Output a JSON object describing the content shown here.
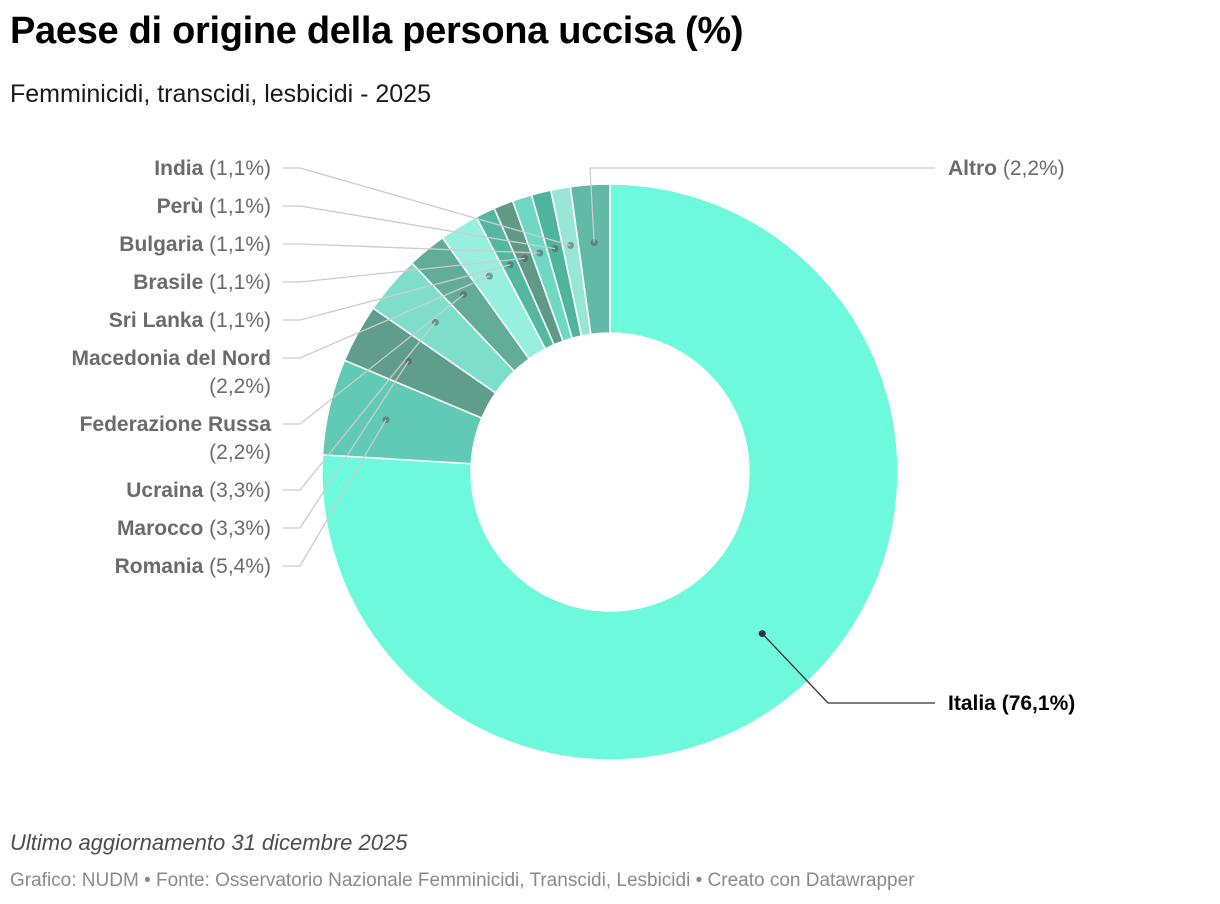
{
  "header": {
    "title": "Paese di origine della persona uccisa (%)",
    "subtitle": "Femminicidi, transcidi, lesbicidi - 2025"
  },
  "notes": "Ultimo aggiornamento 31 dicembre 2025",
  "footer": "Grafico: NUDM • Fonte: Osservatorio Nazionale Femminicidi, Transcidi, Lesbicidi • Creato con Datawrapper",
  "chart_data": {
    "type": "pie",
    "donut": true,
    "title": "Paese di origine della persona uccisa (%)",
    "subtitle": "Femminicidi, transcidi, lesbicidi - 2025",
    "unit": "%",
    "decimal_separator": ",",
    "slices": [
      {
        "name": "Italia",
        "value": 76.1,
        "color": "#6cf9dc",
        "highlight": true
      },
      {
        "name": "Romania",
        "value": 5.4,
        "color": "#60cab5"
      },
      {
        "name": "Marocco",
        "value": 3.3,
        "color": "#5f9e8b"
      },
      {
        "name": "Ucraina",
        "value": 3.3,
        "color": "#7ddfc9"
      },
      {
        "name": "Federazione Russa",
        "value": 2.2,
        "color": "#62ad97"
      },
      {
        "name": "Macedonia del Nord",
        "value": 2.2,
        "color": "#96f0dd"
      },
      {
        "name": "Sri Lanka",
        "value": 1.1,
        "color": "#54b8a0"
      },
      {
        "name": "Brasile",
        "value": 1.1,
        "color": "#5f9a87"
      },
      {
        "name": "Bulgaria",
        "value": 1.1,
        "color": "#6ed8c3"
      },
      {
        "name": "Perù",
        "value": 1.1,
        "color": "#4fb49c"
      },
      {
        "name": "India",
        "value": 1.1,
        "color": "#9ae6d6"
      },
      {
        "name": "Altro",
        "value": 2.2,
        "color": "#62b9a6"
      }
    ]
  }
}
